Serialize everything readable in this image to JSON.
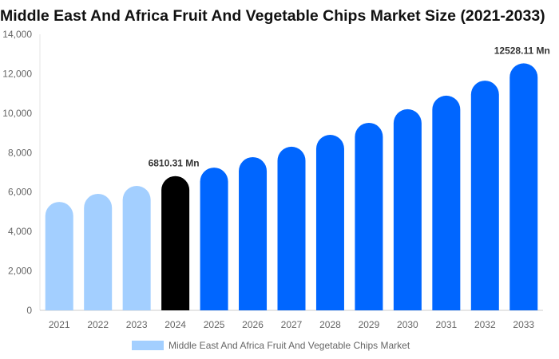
{
  "chart_data": {
    "type": "bar",
    "title": "Middle East And Africa Fruit And Vegetable Chips Market Size (2021-2033)",
    "categories": [
      "2021",
      "2022",
      "2023",
      "2024",
      "2025",
      "2026",
      "2027",
      "2028",
      "2029",
      "2030",
      "2031",
      "2032",
      "2033"
    ],
    "series": [
      {
        "name": "Middle East And Africa Fruit And Vegetable Chips Market",
        "values": [
          5500,
          5910,
          6310,
          6810.31,
          7240,
          7770,
          8300,
          8900,
          9510,
          10200,
          10890,
          11650,
          12528.11
        ]
      }
    ],
    "data_labels": [
      {
        "category": "2024",
        "text": "6810.31 Mn"
      },
      {
        "category": "2033",
        "text": "12528.11 Mn"
      }
    ],
    "ylim": [
      0,
      14000
    ],
    "yticks": [
      "0",
      "2,000",
      "4,000",
      "6,000",
      "8,000",
      "10,000",
      "12,000",
      "14,000"
    ],
    "xlabel": "",
    "ylabel": "",
    "grid": false,
    "legend_position": "bottom",
    "colors": {
      "historical": "#a3cfff",
      "base_year": "#000000",
      "forecast": "#0066ff"
    }
  }
}
